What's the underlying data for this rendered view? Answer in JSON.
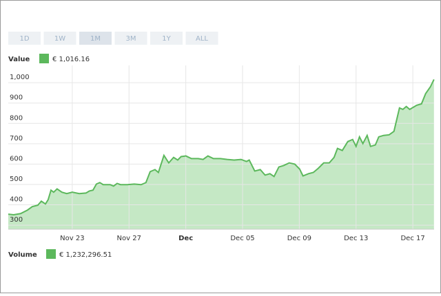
{
  "chart_data": {
    "type": "area",
    "range_buttons": [
      "1D",
      "1W",
      "1M",
      "3M",
      "1Y",
      "ALL"
    ],
    "active_button": 2,
    "series": [
      {
        "name": "Value",
        "display": "€ 1,016.16",
        "color": "#5cb85c",
        "fill": "#c5e8c5",
        "x": [
          18.49,
          18.87,
          19.36,
          19.84,
          20.18,
          20.57,
          20.82,
          21.11,
          21.3,
          21.5,
          21.69,
          21.93,
          22.27,
          22.61,
          23,
          23.49,
          23.97,
          24.21,
          24.46,
          24.7,
          24.94,
          25.18,
          25.67,
          25.91,
          26.16,
          26.4,
          26.88,
          27.37,
          27.85,
          28.19,
          28.49,
          28.83,
          29.07,
          29.46,
          29.8,
          30.14,
          30.43,
          30.67,
          31.01,
          31.4,
          31.88,
          32.22,
          32.56,
          32.95,
          33.44,
          33.92,
          34.41,
          34.89,
          35.28,
          35.47,
          35.86,
          36.25,
          36.59,
          36.93,
          37.22,
          37.56,
          37.9,
          38.29,
          38.68,
          39.02,
          39.26,
          39.65,
          39.99,
          40.33,
          40.72,
          41.11,
          41.45,
          41.69,
          42.03,
          42.42,
          42.76,
          43,
          43.24,
          43.48,
          43.78,
          44.02,
          44.36,
          44.6,
          44.94,
          45.33,
          45.67,
          46.06,
          46.3,
          46.54,
          46.78,
          47.03,
          47.27,
          47.61,
          47.9,
          48.24,
          48.49
        ],
        "values": [
          354,
          351,
          357,
          374,
          391,
          398,
          418,
          404,
          425,
          472,
          462,
          478,
          462,
          455,
          462,
          455,
          458,
          468,
          472,
          502,
          509,
          499,
          499,
          492,
          505,
          499,
          499,
          502,
          499,
          509,
          563,
          573,
          559,
          643,
          606,
          633,
          620,
          637,
          640,
          627,
          627,
          623,
          640,
          627,
          627,
          623,
          620,
          623,
          613,
          620,
          566,
          573,
          546,
          553,
          539,
          586,
          593,
          606,
          600,
          576,
          542,
          553,
          559,
          579,
          606,
          606,
          633,
          677,
          667,
          711,
          721,
          687,
          734,
          701,
          741,
          687,
          694,
          734,
          741,
          744,
          761,
          876,
          869,
          883,
          869,
          879,
          889,
          896,
          946,
          980,
          1016
        ]
      }
    ],
    "volume": {
      "name": "Volume",
      "display": "€ 1,232,296.51",
      "color": "#5cb85c"
    },
    "xlim": [
      18.49,
      48.5
    ],
    "xticks": [
      {
        "value": 23,
        "label": "Nov 23"
      },
      {
        "value": 27,
        "label": "Nov 27"
      },
      {
        "value": 31,
        "label": "Dec",
        "bold": true
      },
      {
        "value": 35,
        "label": "Dec 05"
      },
      {
        "value": 39,
        "label": "Dec 09"
      },
      {
        "value": 43,
        "label": "Dec 13"
      },
      {
        "value": 47,
        "label": "Dec 17"
      }
    ],
    "ylim": [
      280,
      1085
    ],
    "yticks": [
      300,
      400,
      500,
      600,
      700,
      800,
      900,
      {
        "value": 1000,
        "label": "1,000"
      }
    ],
    "grid": true
  }
}
